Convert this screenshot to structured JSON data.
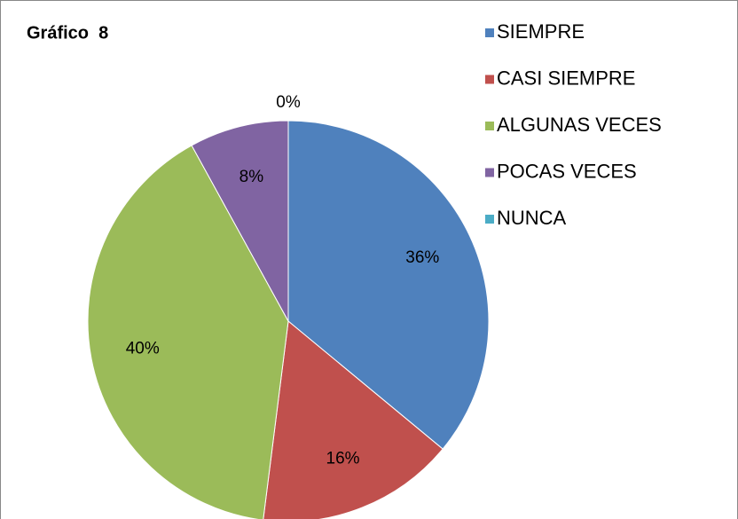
{
  "chart_data": {
    "type": "pie",
    "title": "Gráfico  8",
    "categories": [
      "SIEMPRE",
      "CASI SIEMPRE",
      "ALGUNAS VECES",
      "POCAS VECES",
      "NUNCA"
    ],
    "values": [
      36,
      16,
      40,
      8,
      0
    ],
    "value_labels": [
      "36%",
      "16%",
      "40%",
      "8%",
      "0%"
    ],
    "colors": [
      "#4f81bd",
      "#c0504d",
      "#9bbb59",
      "#8064a2",
      "#4bacc6"
    ],
    "legend": "right"
  }
}
